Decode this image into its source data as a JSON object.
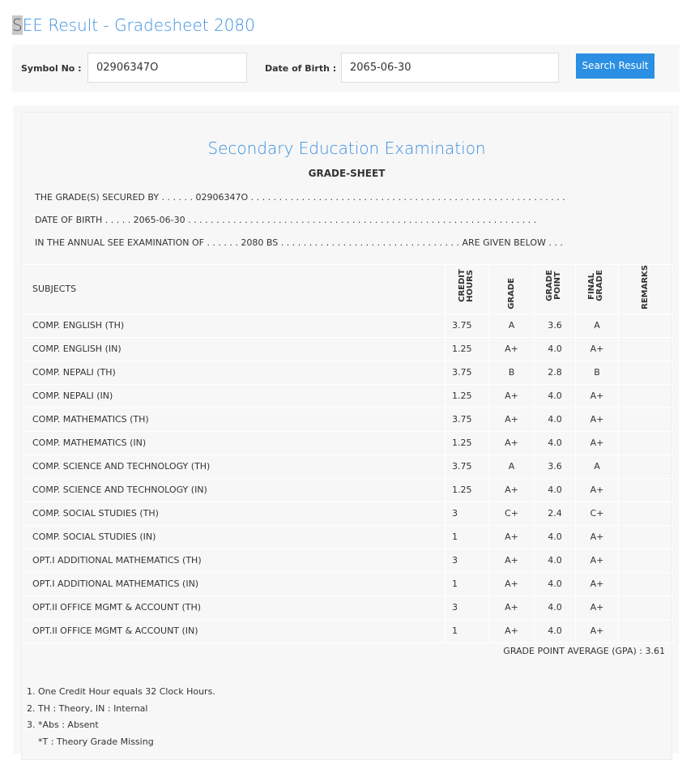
{
  "page": {
    "title_first": "S",
    "title_rest": "EE Result - Gradesheet 2080"
  },
  "search": {
    "symbol_label": "Symbol No :",
    "symbol_value": "02906347O",
    "dob_label": "Date of Birth :",
    "dob_value": "2065-06-30",
    "button": "Search Result"
  },
  "sheet": {
    "heading": "Secondary Education Examination",
    "subheading": "GRADE-SHEET",
    "line1": "THE GRADE(S) SECURED BY . . . . . . 02906347O . . . . . . . . . . . . . . . . . . . . . . . . . . . . . . . . . . . . . . . . . . . . . . . . . . . . . . . .",
    "line2": "DATE OF BIRTH . . . . . 2065-06-30 . . . . . . . . . . . . . . . . . . . . . . . . . . . . . . . . . . . . . . . . . . . . . . . . . . . . . . . . . . . . . .",
    "line3": "IN THE ANNUAL SEE EXAMINATION OF . . . . . . 2080 BS . . . . . . . . . . . . . . . . . . . . . . . . . . . . . . . . ARE GIVEN BELOW . . .",
    "columns": {
      "subjects": "SUBJECTS",
      "credit": "CREDIT HOURS",
      "grade": "GRADE",
      "gp": "GRADE POINT",
      "final": "FINAL GRADE",
      "remarks": "REMARKS"
    },
    "rows": [
      [
        "COMP. ENGLISH (TH)",
        "3.75",
        "A",
        "3.6",
        "A"
      ],
      [
        "COMP. ENGLISH (IN)",
        "1.25",
        "A+",
        "4.0",
        "A+"
      ],
      [
        "COMP. NEPALI (TH)",
        "3.75",
        "B",
        "2.8",
        "B"
      ],
      [
        "COMP. NEPALI (IN)",
        "1.25",
        "A+",
        "4.0",
        "A+"
      ],
      [
        "COMP. MATHEMATICS (TH)",
        "3.75",
        "A+",
        "4.0",
        "A+"
      ],
      [
        "COMP. MATHEMATICS (IN)",
        "1.25",
        "A+",
        "4.0",
        "A+"
      ],
      [
        "COMP. SCIENCE AND TECHNOLOGY (TH)",
        "3.75",
        "A",
        "3.6",
        "A"
      ],
      [
        "COMP. SCIENCE AND TECHNOLOGY (IN)",
        "1.25",
        "A+",
        "4.0",
        "A+"
      ],
      [
        "COMP. SOCIAL STUDIES (TH)",
        "3",
        "C+",
        "2.4",
        "C+"
      ],
      [
        "COMP. SOCIAL STUDIES (IN)",
        "1",
        "A+",
        "4.0",
        "A+"
      ],
      [
        "OPT.I ADDITIONAL MATHEMATICS (TH)",
        "3",
        "A+",
        "4.0",
        "A+"
      ],
      [
        "OPT.I ADDITIONAL MATHEMATICS (IN)",
        "1",
        "A+",
        "4.0",
        "A+"
      ],
      [
        "OPT.II OFFICE MGMT & ACCOUNT (TH)",
        "3",
        "A+",
        "4.0",
        "A+"
      ],
      [
        "OPT.II OFFICE MGMT & ACCOUNT (IN)",
        "1",
        "A+",
        "4.0",
        "A+"
      ]
    ],
    "gpa": "GRADE POINT AVERAGE (GPA) : 3.61",
    "notes": [
      "1. One Credit Hour equals 32 Clock Hours.",
      "2. TH : Theory, IN : Internal",
      "3. *Abs : Absent",
      "    *T : Theory Grade Missing"
    ]
  }
}
